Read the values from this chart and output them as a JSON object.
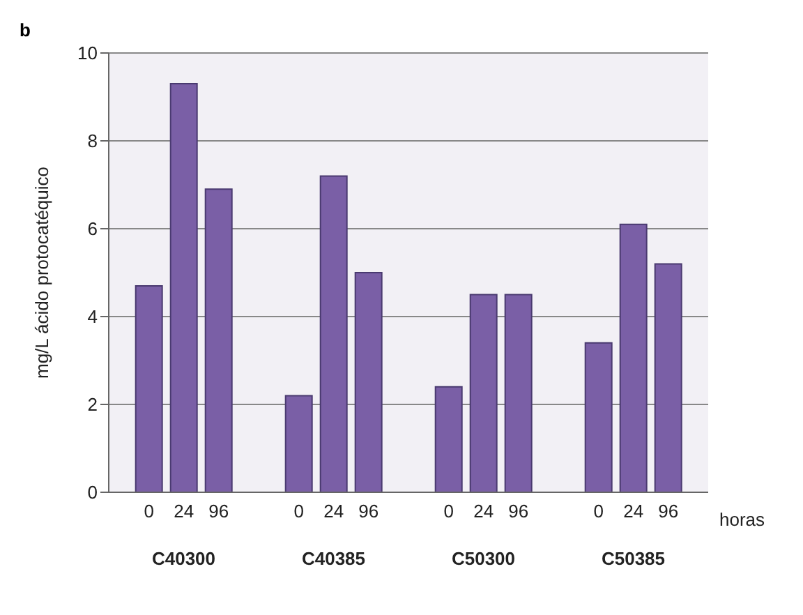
{
  "chart_data": {
    "type": "bar",
    "ylabel": "mg/L ácido protocatéquico",
    "xlabel": "horas",
    "annotations": [
      "b"
    ],
    "categories": [
      "C40300",
      "C40385",
      "C50300",
      "C50385"
    ],
    "series": [
      {
        "name": "0",
        "color": "#7a5fa6",
        "values": [
          4.7,
          2.2,
          2.4,
          3.4
        ]
      },
      {
        "name": "24",
        "color": "#7a5fa6",
        "values": [
          9.3,
          7.2,
          4.5,
          6.1
        ]
      },
      {
        "name": "96",
        "color": "#7a5fa6",
        "values": [
          6.9,
          5.0,
          4.5,
          5.2
        ]
      }
    ],
    "ylim": [
      0,
      10
    ],
    "yticks": [
      0,
      2,
      4,
      6,
      8,
      10
    ],
    "grid": "y"
  }
}
